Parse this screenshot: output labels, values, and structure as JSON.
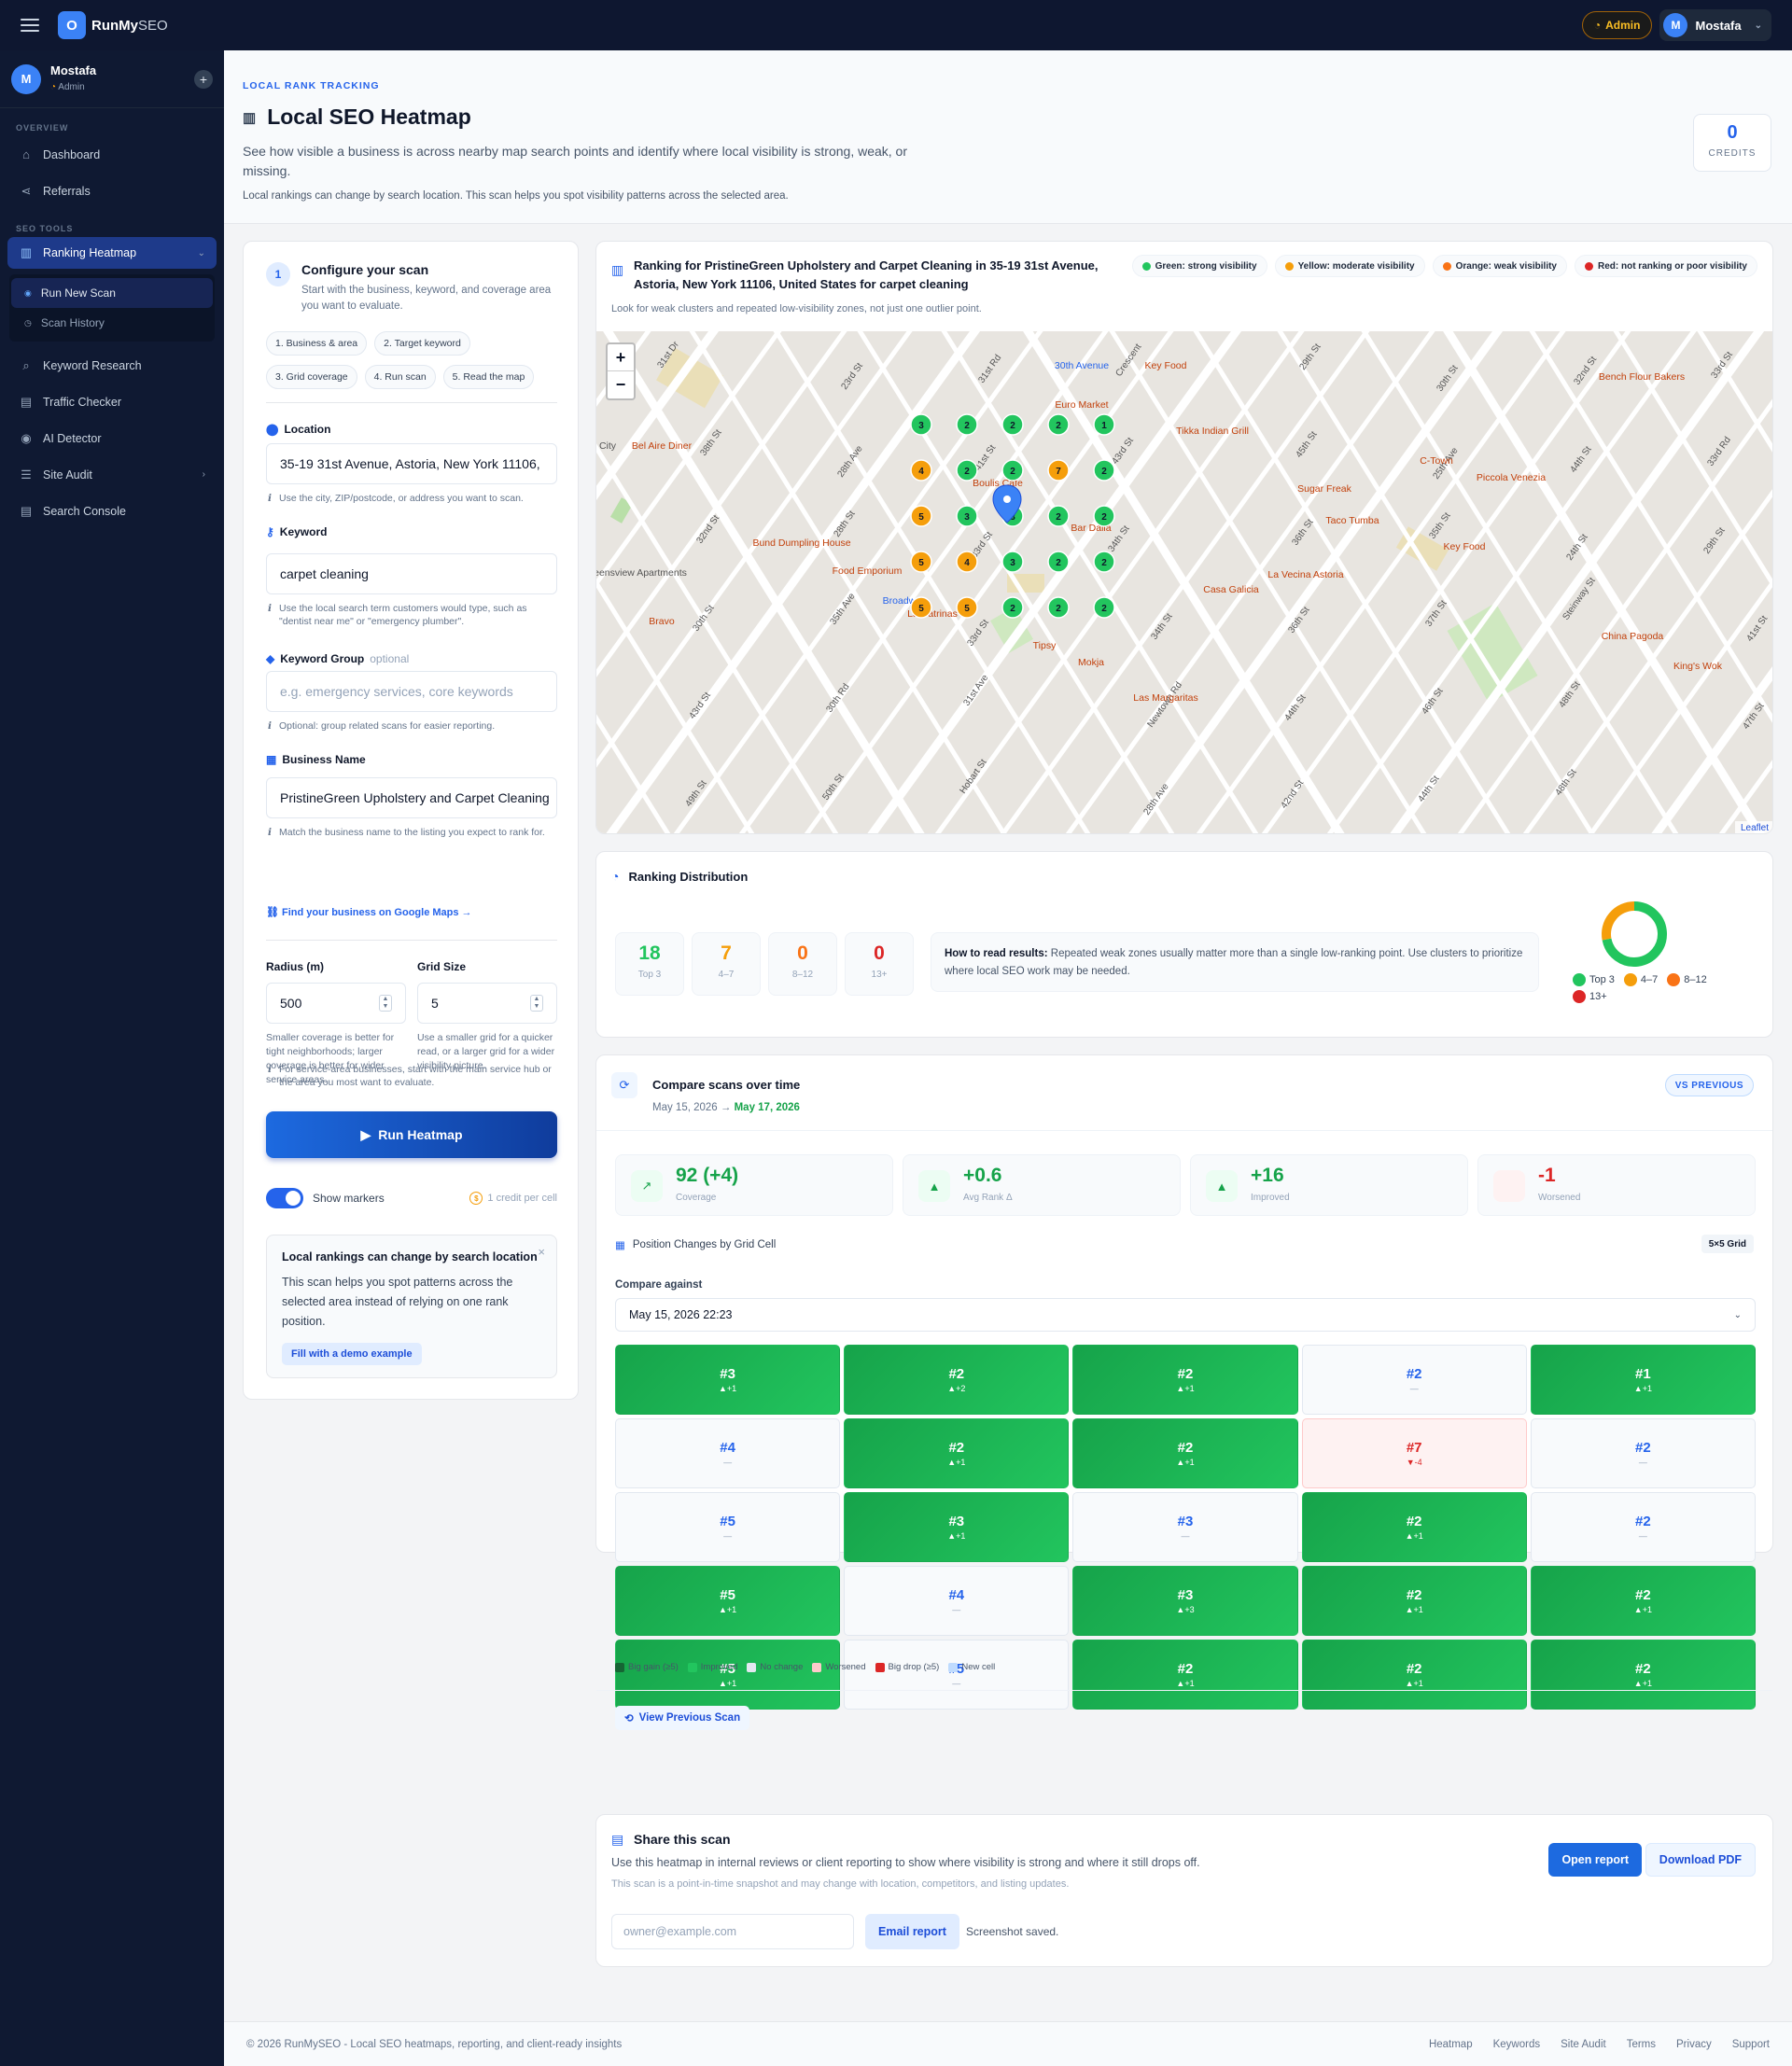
{
  "app": {
    "logo_letter": "O",
    "brand_bold": "RunMy",
    "brand_light": "SEO",
    "admin_badge": "Admin",
    "user_initial": "M",
    "user_name": "Mostafa"
  },
  "sidebar": {
    "user_name": "Mostafa",
    "user_role": "Admin",
    "user_initial": "M",
    "section_overview": "OVERVIEW",
    "section_tools": "SEO TOOLS",
    "items": [
      {
        "label": "Dashboard",
        "icon": "home-icon"
      },
      {
        "label": "Referrals",
        "icon": "share-icon"
      },
      {
        "label": "Ranking Heatmap",
        "icon": "map-icon"
      },
      {
        "label": "Keyword Research",
        "icon": "search-icon"
      },
      {
        "label": "Traffic Checker",
        "icon": "chart-icon"
      },
      {
        "label": "AI Detector",
        "icon": "eye-icon"
      },
      {
        "label": "Site Audit",
        "icon": "list-icon"
      },
      {
        "label": "Search Console",
        "icon": "chart-icon"
      }
    ],
    "sub_items": [
      {
        "label": "Run New Scan"
      },
      {
        "label": "Scan History"
      }
    ]
  },
  "header": {
    "eyebrow": "LOCAL RANK TRACKING",
    "title": "Local SEO Heatmap",
    "description": "See how visible a business is across nearby map search points and identify where local visibility is strong, weak, or missing.",
    "note": "Local rankings can change by search location. This scan helps you spot visibility patterns across the selected area.",
    "credits_value": "0",
    "credits_label": "CREDITS"
  },
  "config": {
    "step": "1",
    "title": "Configure your scan",
    "subtitle": "Start with the business, keyword, and coverage area you want to evaluate.",
    "chips": [
      "1. Business & area",
      "2. Target keyword",
      "3. Grid coverage",
      "4. Run scan",
      "5. Read the map"
    ],
    "location_label": "Location",
    "location_value": "35-19 31st Avenue, Astoria, New York 11106,",
    "location_hint": "Use the city, ZIP/postcode, or address you want to scan.",
    "keyword_label": "Keyword",
    "keyword_value": "carpet cleaning",
    "keyword_hint": "Use the local search term customers would type, such as \"dentist near me\" or \"emergency plumber\".",
    "group_label": "Keyword Group",
    "group_optional": "optional",
    "group_placeholder": "e.g. emergency services, core keywords",
    "group_hint": "Optional: group related scans for easier reporting.",
    "business_label": "Business Name",
    "business_value": "PristineGreen Upholstery and Carpet Cleaning",
    "business_hint": "Match the business name to the listing you expect to rank for.",
    "gmaps_link": "Find your business on Google Maps →",
    "radius_label": "Radius (m)",
    "radius_value": "500",
    "radius_hint": "Smaller coverage is better for tight neighborhoods; larger coverage is better for wider service areas.",
    "grid_label": "Grid Size",
    "grid_value": "5",
    "grid_hint": "Use a smaller grid for a quicker read, or a larger grid for a wider visibility picture.",
    "service_hint": "For service-area businesses, start with the main service hub or the area you most want to evaluate.",
    "run_button": "Run Heatmap",
    "toggle_label": "Show markers",
    "credit_per_cell": "1 credit per cell",
    "tip_title": "Local rankings can change by search location",
    "tip_text": "This scan helps you spot patterns across the selected area instead of relying on one rank position.",
    "demo_button": "Fill with a demo example"
  },
  "map": {
    "title": "Ranking for PristineGreen Upholstery and Carpet Cleaning in 35-19 31st Avenue, Astoria, New York 11106, United States for carpet cleaning",
    "subtitle": "Look for weak clusters and repeated low-visibility zones, not just one outlier point.",
    "legend": [
      {
        "label": "Green: strong visibility",
        "color": "#22c55e"
      },
      {
        "label": "Yellow: moderate visibility",
        "color": "#f59e0b"
      },
      {
        "label": "Orange: weak visibility",
        "color": "#f97316"
      },
      {
        "label": "Red: not ranking or poor visibility",
        "color": "#dc2626"
      }
    ],
    "zoom_in": "+",
    "zoom_out": "−",
    "attribution": "Leaflet",
    "rank_grid": [
      [
        3,
        2,
        2,
        2,
        1
      ],
      [
        4,
        2,
        2,
        7,
        2
      ],
      [
        5,
        3,
        3,
        2,
        2
      ],
      [
        5,
        4,
        3,
        2,
        2
      ],
      [
        5,
        5,
        2,
        2,
        2
      ]
    ],
    "places": [
      {
        "name": "30th Avenue"
      },
      {
        "name": "Key Food"
      },
      {
        "name": "Euro Market"
      },
      {
        "name": "Tikka Indian Grill"
      },
      {
        "name": "Bench Flour Bakers"
      },
      {
        "name": "C-Town"
      },
      {
        "name": "Piccola Venezia"
      },
      {
        "name": "Bel Aire Diner"
      },
      {
        "name": "Boulis Cafe"
      },
      {
        "name": "Sugar Freak"
      },
      {
        "name": "Bar Dalia"
      },
      {
        "name": "Taco Tumba"
      },
      {
        "name": "Bund Dumpling House"
      },
      {
        "name": "Key Food"
      },
      {
        "name": "Food Emporium"
      },
      {
        "name": "La Vecina Astoria"
      },
      {
        "name": "Queensview Apartments"
      },
      {
        "name": "Casa Galicia"
      },
      {
        "name": "Broadway"
      },
      {
        "name": "La Catrinas"
      },
      {
        "name": "Bravo"
      },
      {
        "name": "China Pagoda"
      },
      {
        "name": "Tipsy"
      },
      {
        "name": "Mokja"
      },
      {
        "name": "King's Wok"
      },
      {
        "name": "Las Margaritas"
      },
      {
        "name": "City"
      }
    ],
    "streets": [
      "31st Dr",
      "23rd St",
      "31st Rd",
      "Crescent",
      "29th St",
      "30th St",
      "32nd St",
      "33rd St",
      "38th St",
      "28th Ave",
      "41st St",
      "43rd St",
      "45th St",
      "25th Ave",
      "44th St",
      "33rd Rd",
      "32nd St",
      "28th St",
      "33rd St",
      "34th St",
      "36th St",
      "35th St",
      "24th St",
      "29th St",
      "30th St",
      "35th Ave",
      "33rd St",
      "34th St",
      "36th St",
      "37th St",
      "Steinway St",
      "41st St",
      "43rd St",
      "30th Rd",
      "31st Ave",
      "Newtown Rd",
      "44th St",
      "46th St",
      "48th St",
      "47th St",
      "49th St",
      "50th St",
      "Hobart St",
      "28th Ave",
      "42nd St",
      "44th St",
      "48th St"
    ]
  },
  "distribution": {
    "title": "Ranking Distribution",
    "stats": [
      {
        "value": "18",
        "label": "Top 3",
        "color": "#22c55e"
      },
      {
        "value": "7",
        "label": "4–7",
        "color": "#f59e0b"
      },
      {
        "value": "0",
        "label": "8–12",
        "color": "#f97316"
      },
      {
        "value": "0",
        "label": "13+",
        "color": "#dc2626"
      }
    ],
    "howto_bold": "How to read results:",
    "howto_text": " Repeated weak zones usually matter more than a single low-ranking point. Use clusters to prioritize where local SEO work may be needed."
  },
  "chart_data": {
    "type": "pie",
    "categories": [
      "Top 3",
      "4–7",
      "8–12",
      "13+"
    ],
    "values": [
      18,
      7,
      0,
      0
    ],
    "colors": [
      "#22c55e",
      "#f59e0b",
      "#f97316",
      "#dc2626"
    ],
    "title": ""
  },
  "compare": {
    "title": "Compare scans over time",
    "date_from": "May 15, 2026",
    "arrow": "→",
    "date_to": "May 17, 2026",
    "vs_pill": "VS PREVIOUS",
    "kpis": [
      {
        "value": "92 (+4)",
        "label": "Coverage",
        "icon": "chart-up-icon",
        "tone": "green"
      },
      {
        "value": "+0.6",
        "label": "Avg Rank Δ",
        "icon": "arrow-up-icon",
        "tone": "green"
      },
      {
        "value": "+16",
        "label": "Improved",
        "icon": "arrow-up-icon",
        "tone": "green"
      },
      {
        "value": "-1",
        "label": "Worsened",
        "icon": "arrow-down-icon",
        "tone": "red"
      }
    ],
    "position_title": "Position Changes by Grid Cell",
    "grid_pill": "5×5 Grid",
    "compare_label": "Compare against",
    "compare_value": "May 15, 2026 22:23",
    "cells": [
      {
        "rank": "#3",
        "change": "▲+1",
        "state": "imp"
      },
      {
        "rank": "#2",
        "change": "▲+2",
        "state": "imp"
      },
      {
        "rank": "#2",
        "change": "▲+1",
        "state": "imp"
      },
      {
        "rank": "#2",
        "change": "—",
        "state": "same"
      },
      {
        "rank": "#1",
        "change": "▲+1",
        "state": "imp"
      },
      {
        "rank": "#4",
        "change": "—",
        "state": "same"
      },
      {
        "rank": "#2",
        "change": "▲+1",
        "state": "imp"
      },
      {
        "rank": "#2",
        "change": "▲+1",
        "state": "imp"
      },
      {
        "rank": "#7",
        "change": "▼-4",
        "state": "wor"
      },
      {
        "rank": "#2",
        "change": "—",
        "state": "same"
      },
      {
        "rank": "#5",
        "change": "—",
        "state": "same"
      },
      {
        "rank": "#3",
        "change": "▲+1",
        "state": "imp"
      },
      {
        "rank": "#3",
        "change": "—",
        "state": "same"
      },
      {
        "rank": "#2",
        "change": "▲+1",
        "state": "imp"
      },
      {
        "rank": "#2",
        "change": "—",
        "state": "same"
      },
      {
        "rank": "#5",
        "change": "▲+1",
        "state": "imp"
      },
      {
        "rank": "#4",
        "change": "—",
        "state": "same"
      },
      {
        "rank": "#3",
        "change": "▲+3",
        "state": "imp"
      },
      {
        "rank": "#2",
        "change": "▲+1",
        "state": "imp"
      },
      {
        "rank": "#2",
        "change": "▲+1",
        "state": "imp"
      },
      {
        "rank": "#5",
        "change": "▲+1",
        "state": "imp"
      },
      {
        "rank": "#5",
        "change": "—",
        "state": "same"
      },
      {
        "rank": "#2",
        "change": "▲+1",
        "state": "imp"
      },
      {
        "rank": "#2",
        "change": "▲+1",
        "state": "imp"
      },
      {
        "rank": "#2",
        "change": "▲+1",
        "state": "imp"
      }
    ],
    "legend": [
      {
        "label": "Big gain (≥5)",
        "color": "#166534"
      },
      {
        "label": "Improved",
        "color": "#22c55e"
      },
      {
        "label": "No change",
        "color": "#e2e8f0"
      },
      {
        "label": "Worsened",
        "color": "#fecaca"
      },
      {
        "label": "Big drop (≥5)",
        "color": "#dc2626"
      },
      {
        "label": "New cell",
        "color": "#bfdbfe"
      }
    ],
    "view_prev": "View Previous Scan"
  },
  "share": {
    "title": "Share this scan",
    "description": "Use this heatmap in internal reviews or client reporting to show where visibility is strong and where it still drops off.",
    "note": "This scan is a point-in-time snapshot and may change with location, competitors, and listing updates.",
    "open_report": "Open report",
    "download_pdf": "Download PDF",
    "email_placeholder": "owner@example.com",
    "email_button": "Email report",
    "saved_text": "Screenshot saved."
  },
  "footer": {
    "copyright": "© 2026 RunMySEO - Local SEO heatmaps, reporting, and client-ready insights",
    "links": [
      "Heatmap",
      "Keywords",
      "Site Audit",
      "Terms",
      "Privacy",
      "Support"
    ]
  }
}
